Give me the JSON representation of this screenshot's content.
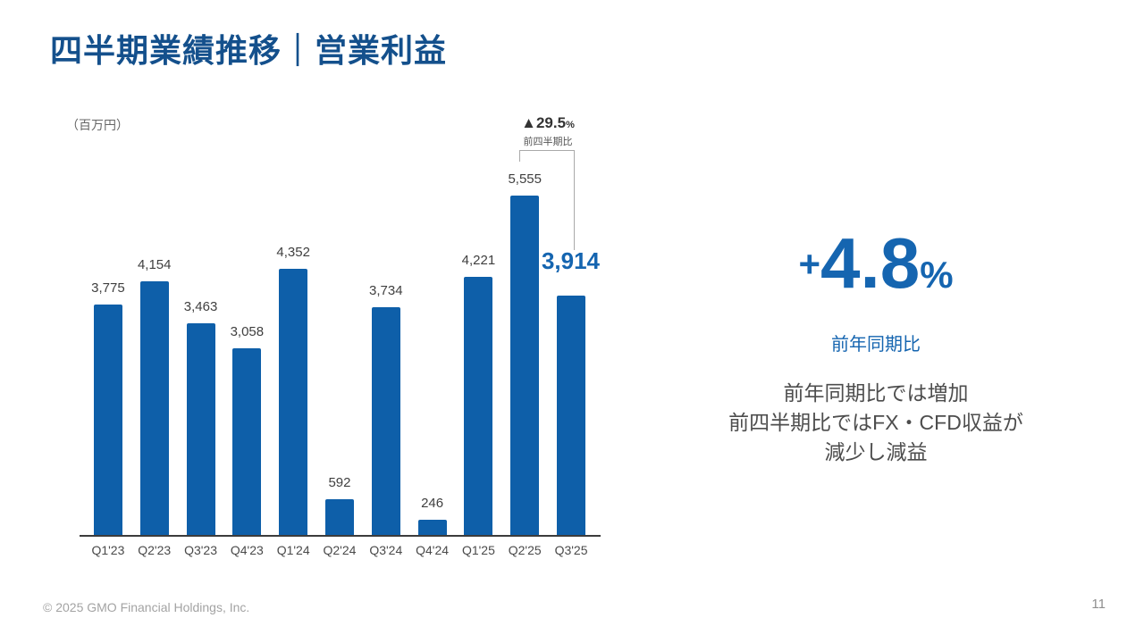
{
  "slide": {
    "title": "四半期業績推移｜営業利益",
    "unit_label": "（百万円）",
    "footer": {
      "copyright": "© 2025 GMO Financial Holdings, Inc.",
      "page_number": "11"
    }
  },
  "chart_data": {
    "type": "bar",
    "title": "四半期業績推移｜営業利益",
    "unit": "百万円",
    "categories": [
      "Q1'23",
      "Q2'23",
      "Q3'23",
      "Q4'23",
      "Q1'24",
      "Q2'24",
      "Q3'24",
      "Q4'24",
      "Q1'25",
      "Q2'25",
      "Q3'25"
    ],
    "values": [
      3775,
      4154,
      3463,
      3058,
      4352,
      592,
      3734,
      246,
      4221,
      5555,
      3914
    ],
    "value_labels": [
      "3,775",
      "4,154",
      "3,463",
      "3,058",
      "4,352",
      "592",
      "3,734",
      "246",
      "4,221",
      "5,555",
      "3,914"
    ],
    "highlight_index": 10,
    "bar_color": "#0e5fa9",
    "ylim": [
      0,
      5555
    ],
    "grid": false,
    "legend": false,
    "annotations": {
      "qoq_change": "▲29.5",
      "qoq_percent_sign": "%",
      "qoq_caption": "前四半期比",
      "highlight_value_label": "3,914"
    }
  },
  "kpi": {
    "sign": "+",
    "value": "4.8",
    "percent_sign": "%",
    "caption": "前年同期比",
    "description_lines": [
      "前年同期比では増加",
      "前四半期比ではFX・CFD収益が",
      "減少し減益"
    ]
  },
  "colors": {
    "title_blue": "#14508c",
    "bar_blue": "#0e5fa9",
    "accent_blue": "#1565b0",
    "label_gray": "#3f3f3f",
    "axis_gray": "#3c3c3c"
  }
}
